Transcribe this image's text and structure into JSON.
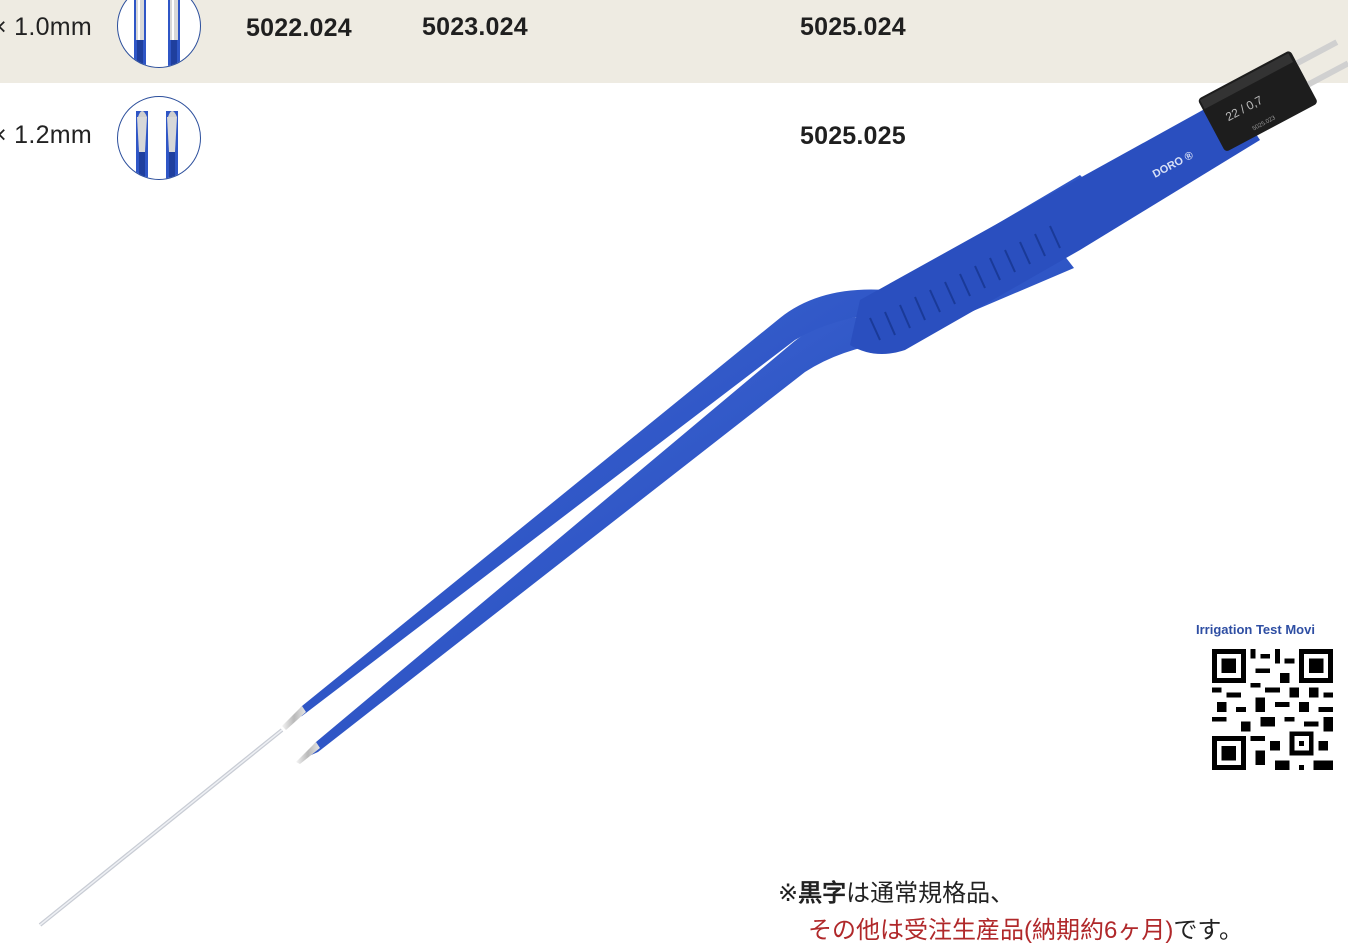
{
  "rows": [
    {
      "size": "× 1.0mm",
      "codes": [
        "5022.024",
        "5023.024",
        "5025.024"
      ]
    },
    {
      "size": "× 1.2mm",
      "codes": [
        "5025.025"
      ]
    }
  ],
  "forceps": {
    "brand": "DORO",
    "connector_mark": "22 / 0,7",
    "connector_code": "5025.023",
    "handle_color": "#2f56c6",
    "connector_color": "#1d1d1d"
  },
  "qr": {
    "title": "Irrigation Test Movi"
  },
  "note": {
    "line1_prefix": "※",
    "line1_bold": "黒字",
    "line1_rest": "は通常規格品、",
    "line2_red": "その他は受注生産品(納期約6ヶ月)",
    "line2_tail": "です。"
  },
  "colors": {
    "band": "#eeebe2",
    "accent_blue": "#2c4f9c",
    "note_red": "#b0282a"
  }
}
